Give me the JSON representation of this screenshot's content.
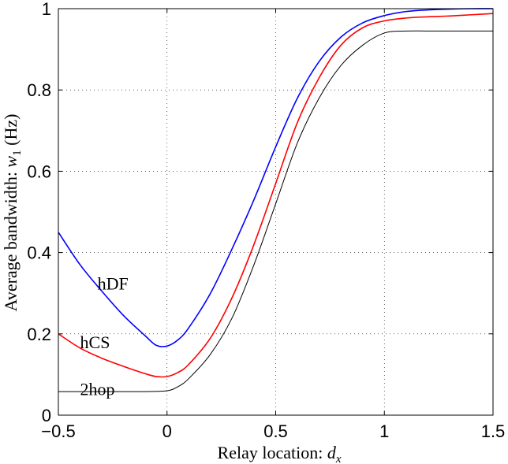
{
  "chart_data": {
    "type": "line",
    "xlabel": "Relay location: d_x",
    "ylabel": "Average bandwidth: w_1 (Hz)",
    "xlabel_parts": {
      "text": "Relay location: ",
      "var": "d",
      "sub": "x"
    },
    "ylabel_parts": {
      "text": "Average bandwidth: ",
      "var": "w",
      "sub": "1",
      "unit": " (Hz)"
    },
    "xlim": [
      -0.5,
      1.5
    ],
    "ylim": [
      0,
      1
    ],
    "xticks": [
      -0.5,
      0,
      0.5,
      1,
      1.5
    ],
    "xtick_labels": [
      "−0.5",
      "0",
      "0.5",
      "1",
      "1.5"
    ],
    "yticks": [
      0,
      0.2,
      0.4,
      0.6,
      0.8,
      1
    ],
    "ytick_labels": [
      "0",
      "0.2",
      "0.4",
      "0.6",
      "0.8",
      "1"
    ],
    "grid": true,
    "series": [
      {
        "name": "hDF",
        "color": "#0000ff",
        "x": [
          -0.5,
          -0.4,
          -0.3,
          -0.2,
          -0.1,
          -0.05,
          0,
          0.05,
          0.1,
          0.2,
          0.3,
          0.4,
          0.5,
          0.6,
          0.7,
          0.8,
          0.9,
          1.0,
          1.1,
          1.2,
          1.3,
          1.4,
          1.5
        ],
        "y": [
          0.45,
          0.37,
          0.305,
          0.245,
          0.195,
          0.172,
          0.17,
          0.185,
          0.215,
          0.3,
          0.41,
          0.53,
          0.66,
          0.78,
          0.87,
          0.93,
          0.965,
          0.983,
          0.993,
          0.997,
          0.999,
          1.0,
          1.0
        ]
      },
      {
        "name": "hCS",
        "color": "#ff0000",
        "x": [
          -0.5,
          -0.4,
          -0.3,
          -0.2,
          -0.1,
          -0.05,
          0,
          0.05,
          0.1,
          0.2,
          0.3,
          0.4,
          0.5,
          0.6,
          0.7,
          0.8,
          0.9,
          1.0,
          1.1,
          1.2,
          1.3,
          1.4,
          1.5
        ],
        "y": [
          0.2,
          0.165,
          0.14,
          0.12,
          0.102,
          0.095,
          0.095,
          0.105,
          0.125,
          0.19,
          0.29,
          0.42,
          0.57,
          0.72,
          0.83,
          0.91,
          0.953,
          0.97,
          0.977,
          0.98,
          0.982,
          0.985,
          0.988
        ]
      },
      {
        "name": "2hop",
        "color": "#000000",
        "x": [
          -0.5,
          -0.4,
          -0.3,
          -0.2,
          -0.1,
          0,
          0.05,
          0.1,
          0.2,
          0.3,
          0.4,
          0.5,
          0.6,
          0.7,
          0.8,
          0.9,
          1.0,
          1.1,
          1.2,
          1.3,
          1.4,
          1.5
        ],
        "y": [
          0.058,
          0.058,
          0.058,
          0.058,
          0.058,
          0.06,
          0.07,
          0.09,
          0.15,
          0.24,
          0.37,
          0.52,
          0.67,
          0.78,
          0.86,
          0.91,
          0.94,
          0.945,
          0.945,
          0.945,
          0.945,
          0.945
        ]
      }
    ],
    "annotations": [
      {
        "text": "hDF",
        "x": -0.32,
        "y": 0.325
      },
      {
        "text": "hCS",
        "x": -0.4,
        "y": 0.18
      },
      {
        "text": "2hop",
        "x": -0.4,
        "y": 0.065
      }
    ]
  }
}
